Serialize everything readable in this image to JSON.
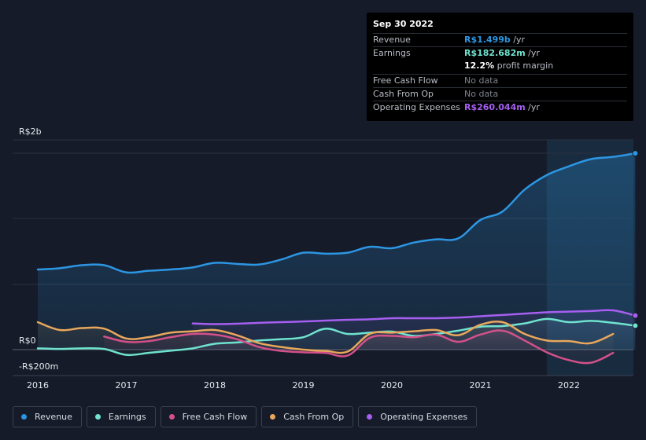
{
  "tooltip": {
    "date": "Sep 30 2022",
    "rows": [
      {
        "label": "Revenue",
        "value": "R$1.499b",
        "unit": " /yr",
        "color": "#2d96e3"
      },
      {
        "label": "Earnings",
        "value": "R$182.682m",
        "unit": " /yr",
        "color": "#6fe3cf",
        "sub_value": "12.2%",
        "sub_text": " profit margin"
      },
      {
        "label": "Free Cash Flow",
        "value": "No data",
        "unit": "",
        "color": ""
      },
      {
        "label": "Cash From Op",
        "value": "No data",
        "unit": "",
        "color": ""
      },
      {
        "label": "Operating Expenses",
        "value": "R$260.044m",
        "unit": " /yr",
        "color": "#a65ff0"
      }
    ]
  },
  "legend": [
    {
      "label": "Revenue",
      "color": "#2d96e3"
    },
    {
      "label": "Earnings",
      "color": "#6fe3cf"
    },
    {
      "label": "Free Cash Flow",
      "color": "#d4508a"
    },
    {
      "label": "Cash From Op",
      "color": "#e8a75c"
    },
    {
      "label": "Operating Expenses",
      "color": "#a65ff0"
    }
  ],
  "chart_data": {
    "type": "line",
    "y_tick_labels": [
      "R$2b",
      "R$0",
      "-R$200m"
    ],
    "x_tick_labels": [
      "2016",
      "2017",
      "2018",
      "2019",
      "2020",
      "2021",
      "2022"
    ],
    "ylim": [
      -200,
      1600
    ],
    "xlim": [
      2015.7,
      2022.75
    ],
    "highlight_start": 2021.75,
    "series": [
      {
        "name": "Revenue",
        "color": "#2d96e3",
        "fill": true,
        "x": [
          2016.0,
          2016.25,
          2016.5,
          2016.75,
          2017.0,
          2017.25,
          2017.5,
          2017.75,
          2018.0,
          2018.25,
          2018.5,
          2018.75,
          2019.0,
          2019.25,
          2019.5,
          2019.75,
          2020.0,
          2020.25,
          2020.5,
          2020.75,
          2021.0,
          2021.25,
          2021.5,
          2021.75,
          2022.0,
          2022.25,
          2022.5,
          2022.75
        ],
        "y": [
          612,
          622,
          645,
          645,
          590,
          602,
          612,
          628,
          663,
          655,
          650,
          688,
          740,
          733,
          740,
          785,
          775,
          818,
          842,
          850,
          990,
          1055,
          1222,
          1333,
          1400,
          1455,
          1472,
          1499
        ]
      },
      {
        "name": "Earnings",
        "color": "#6fe3cf",
        "fill": false,
        "x": [
          2016.0,
          2016.25,
          2016.5,
          2016.75,
          2017.0,
          2017.25,
          2017.5,
          2017.75,
          2018.0,
          2018.25,
          2018.5,
          2018.75,
          2019.0,
          2019.25,
          2019.5,
          2019.75,
          2020.0,
          2020.25,
          2020.5,
          2020.75,
          2021.0,
          2021.25,
          2021.5,
          2021.75,
          2022.0,
          2022.25,
          2022.5,
          2022.75
        ],
        "y": [
          10,
          5,
          10,
          5,
          -40,
          -25,
          -8,
          10,
          45,
          55,
          70,
          80,
          95,
          160,
          120,
          130,
          138,
          105,
          120,
          145,
          175,
          180,
          200,
          235,
          210,
          220,
          205,
          183
        ]
      },
      {
        "name": "Free Cash Flow",
        "color": "#d4508a",
        "fill": false,
        "x": [
          2016.75,
          2017.0,
          2017.25,
          2017.5,
          2017.75,
          2018.0,
          2018.25,
          2018.5,
          2018.75,
          2019.0,
          2019.25,
          2019.5,
          2019.75,
          2020.0,
          2020.25,
          2020.5,
          2020.75,
          2021.0,
          2021.25,
          2021.5,
          2021.75,
          2022.0,
          2022.25,
          2022.5
        ],
        "y": [
          100,
          60,
          65,
          95,
          120,
          115,
          80,
          20,
          -10,
          -20,
          -25,
          -45,
          90,
          105,
          95,
          115,
          60,
          115,
          145,
          70,
          -20,
          -80,
          -100,
          -25
        ]
      },
      {
        "name": "Cash From Op",
        "color": "#e8a75c",
        "fill": false,
        "x": [
          2016.0,
          2016.25,
          2016.5,
          2016.75,
          2017.0,
          2017.25,
          2017.5,
          2017.75,
          2018.0,
          2018.25,
          2018.5,
          2018.75,
          2019.0,
          2019.25,
          2019.5,
          2019.75,
          2020.0,
          2020.25,
          2020.5,
          2020.75,
          2021.0,
          2021.25,
          2021.5,
          2021.75,
          2022.0,
          2022.25,
          2022.5
        ],
        "y": [
          210,
          150,
          165,
          160,
          85,
          95,
          130,
          140,
          150,
          110,
          50,
          20,
          0,
          -10,
          -15,
          120,
          130,
          140,
          150,
          110,
          190,
          210,
          120,
          70,
          65,
          50,
          120
        ]
      },
      {
        "name": "Operating Expenses",
        "color": "#a65ff0",
        "fill": false,
        "x": [
          2017.75,
          2018.0,
          2018.25,
          2018.5,
          2018.75,
          2019.0,
          2019.25,
          2019.5,
          2019.75,
          2020.0,
          2020.25,
          2020.5,
          2020.75,
          2021.0,
          2021.25,
          2021.5,
          2021.75,
          2022.0,
          2022.25,
          2022.5,
          2022.75
        ],
        "y": [
          200,
          195,
          198,
          205,
          210,
          215,
          222,
          228,
          232,
          240,
          240,
          240,
          245,
          255,
          265,
          275,
          285,
          290,
          295,
          300,
          260
        ]
      }
    ]
  }
}
